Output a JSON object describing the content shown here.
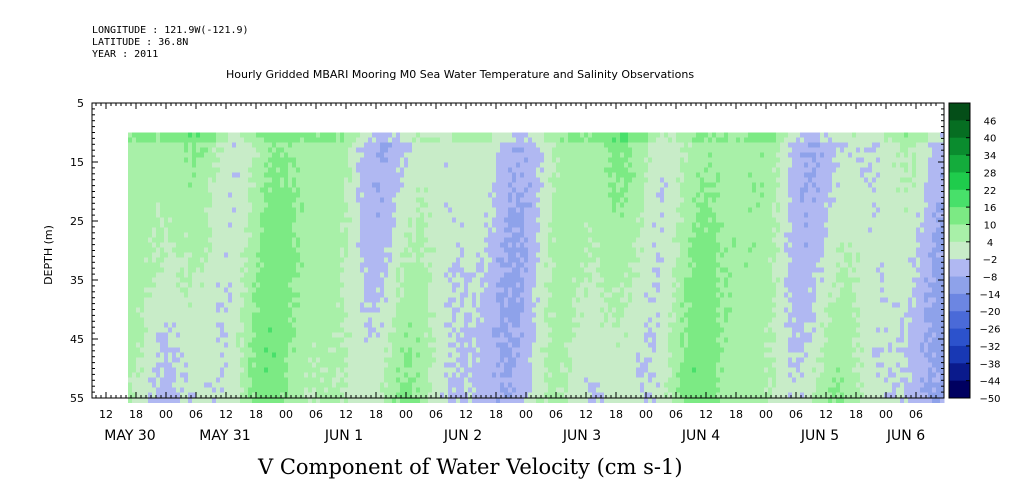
{
  "header": {
    "longitude": "LONGITUDE : 121.9W(-121.9)",
    "latitude": "LATITUDE : 36.8N",
    "year": "YEAR : 2011"
  },
  "chart_data": {
    "type": "heatmap",
    "title": "Hourly Gridded MBARI Mooring M0 Sea Water Temperature and Salinity Observations",
    "ylabel": "DEPTH (m)",
    "variable_label": "V Component of Water Velocity (cm s-1)",
    "ylim": [
      5,
      55
    ],
    "y_ticks": [
      5,
      15,
      25,
      35,
      45,
      55
    ],
    "data_depth_range": [
      10,
      55
    ],
    "x_hour_labels": [
      "12",
      "18",
      "00",
      "06",
      "12",
      "18",
      "00",
      "06",
      "12",
      "18",
      "00",
      "06",
      "12",
      "18",
      "00",
      "06",
      "12",
      "18",
      "00",
      "06",
      "12",
      "18",
      "00",
      "06",
      "12",
      "18",
      "00",
      "06"
    ],
    "x_date_labels": [
      "MAY 30",
      "MAY 31",
      "JUN  1",
      "JUN  2",
      "JUN  3",
      "JUN  4",
      "JUN  5",
      "JUN  6"
    ],
    "colorbar": {
      "levels": [
        -50,
        -44,
        -38,
        -32,
        -26,
        -20,
        -14,
        -8,
        -2,
        4,
        10,
        16,
        22,
        28,
        34,
        40,
        46
      ],
      "colors": [
        "#000060",
        "#0a1a8c",
        "#1838b4",
        "#2c52cc",
        "#4a6ad8",
        "#6c86e2",
        "#8ea2ea",
        "#b0b8f2",
        "#c8ecc8",
        "#a8f0a8",
        "#7cea84",
        "#48e06a",
        "#1fcc4c",
        "#14ac3c",
        "#0a8c2e",
        "#066e22",
        "#044e18"
      ]
    }
  }
}
